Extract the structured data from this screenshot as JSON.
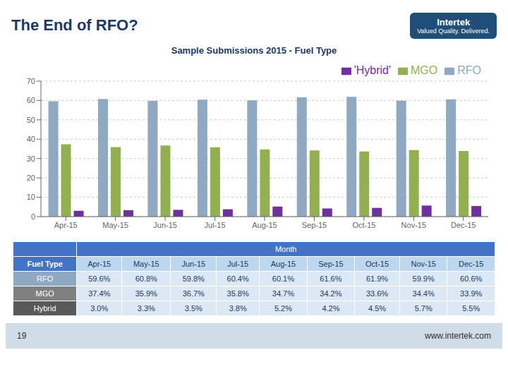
{
  "chart_data": {
    "type": "bar",
    "title": "The End of RFO?",
    "subtitle": "Sample Submissions 2015 - Fuel Type",
    "categories": [
      "Apr-15",
      "May-15",
      "Jun-15",
      "Jul-15",
      "Aug-15",
      "Sep-15",
      "Oct-15",
      "Nov-15",
      "Dec-15"
    ],
    "series": [
      {
        "name": "RFO",
        "color": "#8EA9C1",
        "values": [
          59.6,
          60.8,
          59.8,
          60.4,
          60.1,
          61.6,
          61.9,
          59.9,
          60.6
        ],
        "value_labels": [
          "59.6%",
          "60.8%",
          "59.8%",
          "60.4%",
          "60.1%",
          "61.6%",
          "61.9%",
          "59.9%",
          "60.6%"
        ]
      },
      {
        "name": "MGO",
        "color": "#92B050",
        "values": [
          37.4,
          35.9,
          36.7,
          35.8,
          34.7,
          34.2,
          33.6,
          34.4,
          33.9
        ],
        "value_labels": [
          "37.4%",
          "35.9%",
          "36.7%",
          "35.8%",
          "34.7%",
          "34.2%",
          "33.6%",
          "34.4%",
          "33.9%"
        ]
      },
      {
        "name": "'Hybrid'",
        "color": "#7030A0",
        "values": [
          3.0,
          3.3,
          3.5,
          3.8,
          5.2,
          4.2,
          4.5,
          5.7,
          5.5
        ],
        "value_labels": [
          "3.0%",
          "3.3%",
          "3.5%",
          "3.8%",
          "5.2%",
          "4.2%",
          "4.5%",
          "5.7%",
          "5.5%"
        ]
      }
    ],
    "ylim": [
      0,
      70
    ],
    "yticks": [
      0,
      10,
      20,
      30,
      40,
      50,
      60,
      70
    ],
    "grid": true,
    "legend": "upper right",
    "annotations": [
      "Month",
      "Fuel Type",
      "Hybrid",
      "Intertek",
      "Valued Quality. Delivered.",
      "19",
      "www.intertek.com"
    ]
  }
}
